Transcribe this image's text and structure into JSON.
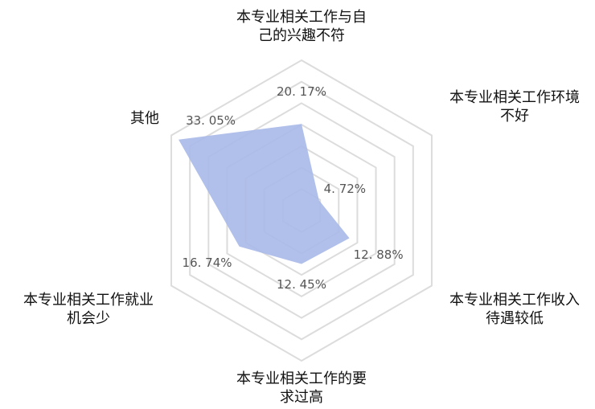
{
  "chart_data": {
    "type": "radar",
    "categories": [
      "本专业相关工作与自己的兴趣不符",
      "本专业相关工作环境不好",
      "本专业相关工作收入待遇较低",
      "本专业相关工作的要求过高",
      "本专业相关工作就业机会少",
      "其他"
    ],
    "values": [
      20.17,
      4.72,
      12.88,
      12.45,
      16.74,
      33.05
    ],
    "value_labels": [
      "20. 17%",
      "4. 72%",
      "12. 88%",
      "12. 45%",
      "16. 74%",
      "33. 05%"
    ],
    "color": "#a9b9e8",
    "ylim": [
      0,
      35
    ],
    "yticks": [
      5,
      10,
      15,
      20,
      25,
      30,
      35
    ]
  }
}
